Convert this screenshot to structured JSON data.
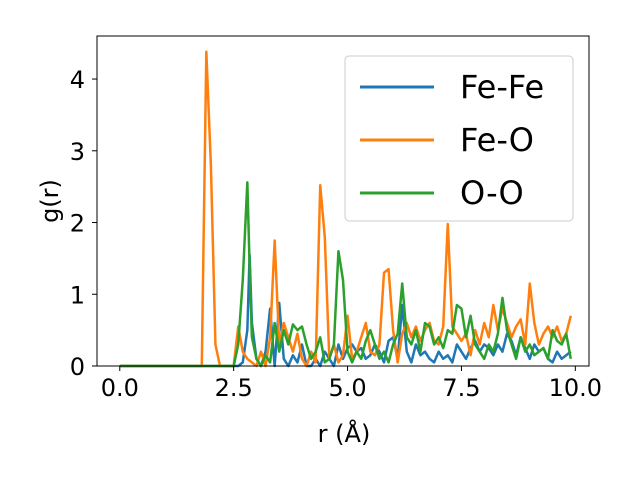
{
  "chart_data": {
    "type": "line",
    "title": "",
    "xlabel": "r (Å)",
    "ylabel": "g(r)",
    "xlim": [
      -0.5,
      10.3
    ],
    "ylim": [
      0,
      4.6
    ],
    "xticks": [
      0.0,
      2.5,
      5.0,
      7.5,
      10.0
    ],
    "xtick_labels": [
      "0.0",
      "2.5",
      "5.0",
      "7.5",
      "10.0"
    ],
    "yticks": [
      0,
      1,
      2,
      3,
      4
    ],
    "ytick_labels": [
      "0",
      "1",
      "2",
      "3",
      "4"
    ],
    "grid": false,
    "legend_position": "top-right",
    "series": [
      {
        "name": "Fe-Fe",
        "color": "#1f77b4",
        "x": [
          0.0,
          1.0,
          2.0,
          2.5,
          2.6,
          2.7,
          2.8,
          2.85,
          2.9,
          3.0,
          3.1,
          3.2,
          3.3,
          3.4,
          3.5,
          3.6,
          3.7,
          3.8,
          3.9,
          4.0,
          4.1,
          4.2,
          4.3,
          4.4,
          4.5,
          4.6,
          4.7,
          4.8,
          4.9,
          5.0,
          5.1,
          5.2,
          5.3,
          5.4,
          5.5,
          5.6,
          5.7,
          5.8,
          5.9,
          6.0,
          6.1,
          6.2,
          6.3,
          6.4,
          6.5,
          6.6,
          6.7,
          6.8,
          6.9,
          7.0,
          7.1,
          7.2,
          7.3,
          7.4,
          7.5,
          7.6,
          7.7,
          7.8,
          7.9,
          8.0,
          8.1,
          8.2,
          8.3,
          8.4,
          8.5,
          8.6,
          8.7,
          8.8,
          8.9,
          9.0,
          9.1,
          9.2,
          9.3,
          9.4,
          9.5,
          9.6,
          9.7,
          9.8,
          9.9
        ],
        "values": [
          0,
          0,
          0,
          0,
          0,
          0.05,
          0.5,
          1.55,
          0.6,
          0.1,
          0,
          0.2,
          0.8,
          0,
          0.88,
          0.1,
          0,
          0.15,
          0.05,
          0.3,
          0,
          0,
          0.1,
          0,
          0.2,
          0.1,
          0,
          0.3,
          0.1,
          0.25,
          0.3,
          0.2,
          0.25,
          0.1,
          0.15,
          0.3,
          0.2,
          0.05,
          0.35,
          0.4,
          0.1,
          0.85,
          0.2,
          0.05,
          0.3,
          0.15,
          0.2,
          0.1,
          0.05,
          0.2,
          0.1,
          0.15,
          0.05,
          0.3,
          0.2,
          0.1,
          0.25,
          0.35,
          0.2,
          0.3,
          0.25,
          0.15,
          0.3,
          0.2,
          0.45,
          0.35,
          0.15,
          0.4,
          0.25,
          0.1,
          0.3,
          0.2,
          0.25,
          0.1,
          0.05,
          0.2,
          0.1,
          0.15,
          0.2
        ]
      },
      {
        "name": "Fe-O",
        "color": "#ff7f0e",
        "x": [
          0.0,
          1.0,
          1.8,
          1.9,
          2.0,
          2.1,
          2.2,
          2.3,
          2.4,
          2.5,
          2.6,
          2.7,
          2.8,
          2.9,
          3.0,
          3.1,
          3.2,
          3.3,
          3.4,
          3.5,
          3.6,
          3.7,
          3.8,
          3.9,
          4.0,
          4.1,
          4.2,
          4.3,
          4.4,
          4.5,
          4.6,
          4.7,
          4.8,
          4.9,
          5.0,
          5.1,
          5.2,
          5.3,
          5.4,
          5.5,
          5.6,
          5.7,
          5.8,
          5.9,
          6.0,
          6.1,
          6.2,
          6.3,
          6.4,
          6.5,
          6.6,
          6.7,
          6.8,
          6.9,
          7.0,
          7.1,
          7.2,
          7.3,
          7.4,
          7.5,
          7.6,
          7.7,
          7.8,
          7.9,
          8.0,
          8.1,
          8.2,
          8.3,
          8.4,
          8.5,
          8.6,
          8.7,
          8.8,
          8.9,
          9.0,
          9.1,
          9.2,
          9.3,
          9.4,
          9.5,
          9.6,
          9.7,
          9.8,
          9.9
        ],
        "values": [
          0,
          0,
          0,
          4.38,
          2.8,
          0.3,
          0,
          0,
          0,
          0,
          0.55,
          0.2,
          0.1,
          0.05,
          0,
          0.2,
          0,
          0.4,
          1.75,
          0.3,
          0.6,
          0.4,
          0.2,
          0.45,
          0.1,
          0,
          0.2,
          0.05,
          2.52,
          1.8,
          0.1,
          0.3,
          0.05,
          0.15,
          0.7,
          0.1,
          0.2,
          0.4,
          0.6,
          0.2,
          0.15,
          0.3,
          1.3,
          1.35,
          0.5,
          0.05,
          0.45,
          0.6,
          0.4,
          0.55,
          0.35,
          0.5,
          0.6,
          0.35,
          0.3,
          0.55,
          1.98,
          0.55,
          0.45,
          0.35,
          0.45,
          0.15,
          0.5,
          0.3,
          0.6,
          0.4,
          0.85,
          0.5,
          0.8,
          0.6,
          0.4,
          0.55,
          0.65,
          0.3,
          1.15,
          0.6,
          0.3,
          0.45,
          0.55,
          0.4,
          0.55,
          0.35,
          0.45,
          0.7
        ]
      },
      {
        "name": "O-O",
        "color": "#2ca02c",
        "x": [
          0.0,
          1.0,
          2.0,
          2.5,
          2.6,
          2.7,
          2.8,
          2.85,
          2.9,
          3.0,
          3.1,
          3.2,
          3.3,
          3.4,
          3.5,
          3.6,
          3.7,
          3.8,
          3.9,
          4.0,
          4.1,
          4.2,
          4.3,
          4.4,
          4.5,
          4.6,
          4.7,
          4.8,
          4.9,
          5.0,
          5.1,
          5.2,
          5.3,
          5.4,
          5.5,
          5.6,
          5.7,
          5.8,
          5.9,
          6.0,
          6.1,
          6.2,
          6.3,
          6.4,
          6.5,
          6.6,
          6.7,
          6.8,
          6.9,
          7.0,
          7.1,
          7.2,
          7.3,
          7.4,
          7.5,
          7.6,
          7.7,
          7.8,
          7.9,
          8.0,
          8.1,
          8.2,
          8.3,
          8.4,
          8.5,
          8.6,
          8.7,
          8.8,
          8.9,
          9.0,
          9.1,
          9.2,
          9.3,
          9.4,
          9.5,
          9.6,
          9.7,
          9.8,
          9.9
        ],
        "values": [
          0,
          0,
          0,
          0,
          0.3,
          1.2,
          2.56,
          1.4,
          0.4,
          0.1,
          0,
          0.15,
          0.05,
          0.6,
          0.2,
          0.5,
          0.3,
          0.58,
          0.5,
          0.55,
          0.3,
          0.1,
          0.2,
          0.4,
          0.05,
          0.1,
          0.3,
          1.6,
          1.2,
          0.2,
          0.05,
          0.2,
          0.1,
          0.35,
          0.5,
          0.3,
          0.1,
          0.2,
          0.05,
          0.3,
          0.45,
          1.15,
          0.4,
          0.3,
          0.5,
          0.2,
          0.6,
          0.55,
          0.3,
          0.4,
          0.25,
          0.5,
          0.45,
          0.85,
          0.8,
          0.4,
          0.7,
          0.3,
          0.2,
          0.1,
          0.3,
          0.2,
          0.45,
          0.95,
          0.5,
          0.3,
          0.1,
          0.4,
          0.2,
          0.3,
          0.15,
          0.2,
          0.25,
          0.1,
          0.5,
          0.35,
          0.3,
          0.45,
          0.1
        ]
      }
    ]
  }
}
